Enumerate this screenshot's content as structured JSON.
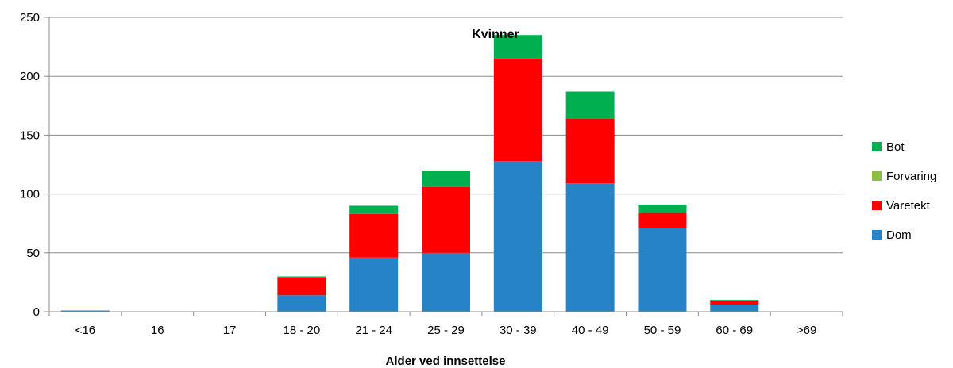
{
  "chart_data": {
    "type": "bar",
    "stacked": true,
    "title": "Kvinner",
    "xlabel": "Alder ved innsettelse",
    "ylabel": "",
    "ylim": [
      0,
      250
    ],
    "yticks": [
      0,
      50,
      100,
      150,
      200,
      250
    ],
    "grid": true,
    "legend_position": "right",
    "categories": [
      "<16",
      "16",
      "17",
      "18 - 20",
      "21 - 24",
      "25 - 29",
      "30 - 39",
      "40 - 49",
      "50 - 59",
      "60 - 69",
      ">69"
    ],
    "series": [
      {
        "name": "Dom",
        "color": "#2683C6",
        "values": [
          1,
          0,
          0,
          14,
          46,
          50,
          128,
          109,
          71,
          6,
          0
        ]
      },
      {
        "name": "Varetekt",
        "color": "#FF0000",
        "values": [
          0,
          0,
          0,
          15,
          37,
          56,
          87,
          55,
          13,
          3,
          0
        ]
      },
      {
        "name": "Forvaring",
        "color": "#8CBF3F",
        "values": [
          0,
          0,
          0,
          0,
          0,
          0,
          0,
          0,
          0,
          0,
          0
        ]
      },
      {
        "name": "Bot",
        "color": "#00B050",
        "values": [
          0,
          0,
          0,
          1,
          7,
          14,
          20,
          23,
          7,
          1,
          0
        ]
      }
    ],
    "legend_order": [
      "Bot",
      "Forvaring",
      "Varetekt",
      "Dom"
    ]
  }
}
